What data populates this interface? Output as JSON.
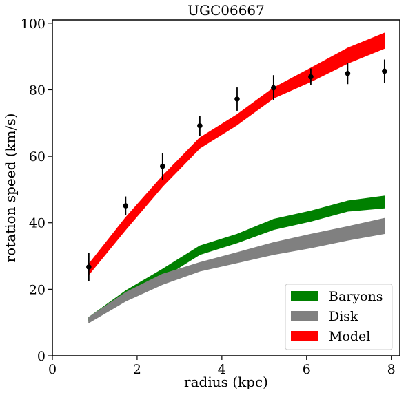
{
  "chart_data": {
    "type": "line",
    "title": "UGC06667",
    "xlabel": "radius (kpc)",
    "ylabel": "rotation speed (km/s)",
    "xlim": [
      0,
      8.2
    ],
    "ylim": [
      0,
      101
    ],
    "xticks": [
      0,
      2,
      4,
      6,
      8
    ],
    "yticks": [
      0,
      20,
      40,
      60,
      80,
      100
    ],
    "grid": false,
    "legend_position": "bottom-right",
    "x": [
      0.86,
      1.73,
      2.6,
      3.48,
      4.36,
      5.22,
      6.1,
      6.97,
      7.84
    ],
    "series": [
      {
        "name": "Baryons",
        "kind": "band",
        "color": "#008000",
        "lower": [
          10.5,
          17.5,
          23.5,
          30.5,
          34.0,
          38.0,
          40.5,
          43.5,
          44.5
        ],
        "upper": [
          11.5,
          19.5,
          26.0,
          33.0,
          36.5,
          41.0,
          43.5,
          46.5,
          48.0
        ]
      },
      {
        "name": "Disk",
        "kind": "band",
        "color": "#808080",
        "lower": [
          10.0,
          16.5,
          21.5,
          25.5,
          28.0,
          30.5,
          32.5,
          34.8,
          36.8
        ],
        "upper": [
          11.5,
          19.0,
          24.5,
          28.0,
          31.0,
          34.0,
          36.5,
          38.8,
          41.3
        ]
      },
      {
        "name": "Model",
        "kind": "band",
        "color": "#ff0000",
        "lower": [
          24.5,
          38.0,
          51.0,
          62.5,
          69.5,
          77.5,
          82.5,
          88.0,
          92.5
        ],
        "upper": [
          27.5,
          41.5,
          54.0,
          65.5,
          72.5,
          80.5,
          86.5,
          92.5,
          97.0
        ]
      },
      {
        "name": "",
        "kind": "points",
        "color": "#000000",
        "y": [
          26.7,
          45.1,
          57.0,
          69.2,
          77.2,
          80.6,
          83.9,
          84.9,
          85.6
        ],
        "err": [
          4.2,
          2.8,
          4.0,
          3.0,
          3.5,
          3.8,
          2.5,
          3.2,
          3.5
        ]
      }
    ]
  }
}
